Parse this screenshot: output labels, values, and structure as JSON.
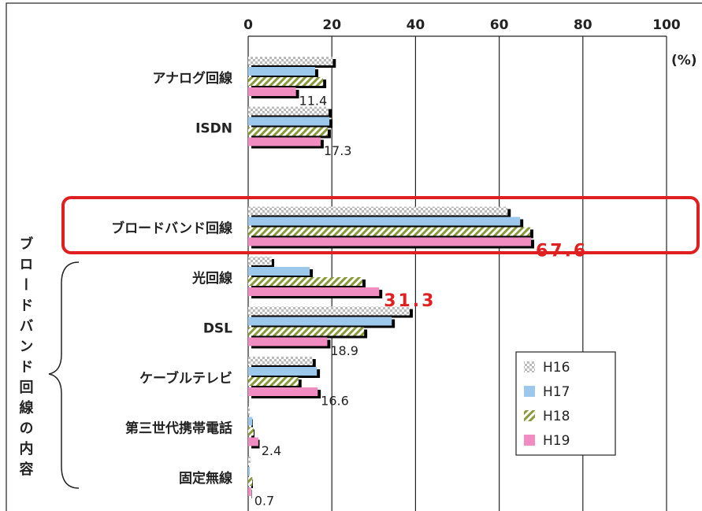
{
  "chart_data": {
    "type": "bar",
    "orientation": "horizontal",
    "categories": [
      "アナログ回線",
      "ISDN",
      null,
      "ブロードバンド回線",
      "光回線",
      "DSL",
      "ケーブルテレビ",
      "第三世代携帯電話",
      "固定無線"
    ],
    "series": [
      {
        "name": "H16",
        "color": "#c8c8c8",
        "values": [
          20.2,
          19.2,
          null,
          62,
          5.6,
          38.6,
          15.4,
          0.4,
          0.6
        ]
      },
      {
        "name": "H17",
        "color": "#9cc8ec",
        "values": [
          16,
          19.4,
          null,
          65,
          14.7,
          34.3,
          16.4,
          1,
          0.4
        ]
      },
      {
        "name": "H18",
        "color": "#8a9a3a",
        "values": [
          17.9,
          19,
          null,
          67.4,
          27.3,
          27.7,
          12,
          1.3,
          1
        ]
      },
      {
        "name": "H19",
        "color": "#f08cc0",
        "values": [
          11.4,
          17.3,
          null,
          67.6,
          31.3,
          18.9,
          16.6,
          2.4,
          0.7
        ]
      }
    ],
    "xlim": [
      0,
      100
    ],
    "xticks": [
      0,
      20,
      40,
      60,
      80,
      100
    ],
    "grid": true,
    "unit_label": "(%)",
    "group_label": "ブロードバンド回線の内容",
    "legend": "lower right"
  }
}
